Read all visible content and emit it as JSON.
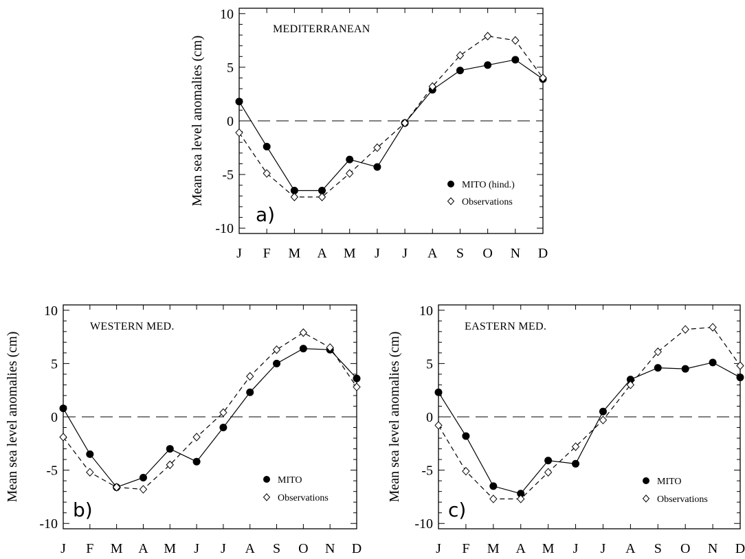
{
  "ylabel": "Mean sea level anomalies (cm)",
  "chart_data": [
    {
      "type": "line",
      "panel_letter": "a)",
      "title": "MEDITERRANEAN",
      "categories": [
        "J",
        "F",
        "M",
        "A",
        "M",
        "J",
        "J",
        "A",
        "S",
        "O",
        "N",
        "D"
      ],
      "ylim": [
        -10.5,
        10.5
      ],
      "yticks": [
        -10,
        -5,
        0,
        5,
        10
      ],
      "zero_line": true,
      "legend_position": "bottom-right",
      "series": [
        {
          "name": "MITO (hind.)",
          "marker": "filled-circle",
          "line": "solid",
          "values": [
            1.8,
            -2.4,
            -6.5,
            -6.5,
            -3.6,
            -4.3,
            -0.2,
            2.9,
            4.7,
            5.2,
            5.7,
            3.9
          ]
        },
        {
          "name": "Observations",
          "marker": "open-diamond",
          "line": "dashed",
          "values": [
            -1.1,
            -4.9,
            -7.1,
            -7.1,
            -4.9,
            -2.5,
            -0.2,
            3.2,
            6.1,
            7.9,
            7.5,
            4.0
          ]
        }
      ]
    },
    {
      "type": "line",
      "panel_letter": "b)",
      "title": "WESTERN MED.",
      "categories": [
        "J",
        "F",
        "M",
        "A",
        "M",
        "J",
        "J",
        "A",
        "S",
        "O",
        "N",
        "D"
      ],
      "ylim": [
        -10.5,
        10.5
      ],
      "yticks": [
        -10,
        -5,
        0,
        5,
        10
      ],
      "zero_line": true,
      "legend_position": "bottom-right",
      "series": [
        {
          "name": "MITO",
          "marker": "filled-circle",
          "line": "solid",
          "values": [
            0.8,
            -3.5,
            -6.6,
            -5.7,
            -3.0,
            -4.2,
            -1.0,
            2.3,
            5.0,
            6.4,
            6.3,
            3.6
          ]
        },
        {
          "name": "Observations",
          "marker": "open-diamond",
          "line": "dashed",
          "values": [
            -1.9,
            -5.2,
            -6.6,
            -6.8,
            -4.5,
            -1.9,
            0.4,
            3.8,
            6.3,
            7.9,
            6.5,
            2.8
          ]
        }
      ]
    },
    {
      "type": "line",
      "panel_letter": "c)",
      "title": "EASTERN MED.",
      "categories": [
        "J",
        "F",
        "M",
        "A",
        "M",
        "J",
        "J",
        "A",
        "S",
        "O",
        "N",
        "D"
      ],
      "ylim": [
        -10.5,
        10.5
      ],
      "yticks": [
        -10,
        -5,
        0,
        5,
        10
      ],
      "zero_line": true,
      "legend_position": "bottom-right",
      "series": [
        {
          "name": "MITO",
          "marker": "filled-circle",
          "line": "solid",
          "values": [
            2.3,
            -1.8,
            -6.5,
            -7.2,
            -4.1,
            -4.4,
            0.5,
            3.5,
            4.6,
            4.5,
            5.1,
            3.7
          ]
        },
        {
          "name": "Observations",
          "marker": "open-diamond",
          "line": "dashed",
          "values": [
            -0.8,
            -5.1,
            -7.7,
            -7.7,
            -5.2,
            -2.8,
            -0.3,
            3.0,
            6.1,
            8.2,
            8.4,
            4.8
          ]
        }
      ]
    }
  ]
}
